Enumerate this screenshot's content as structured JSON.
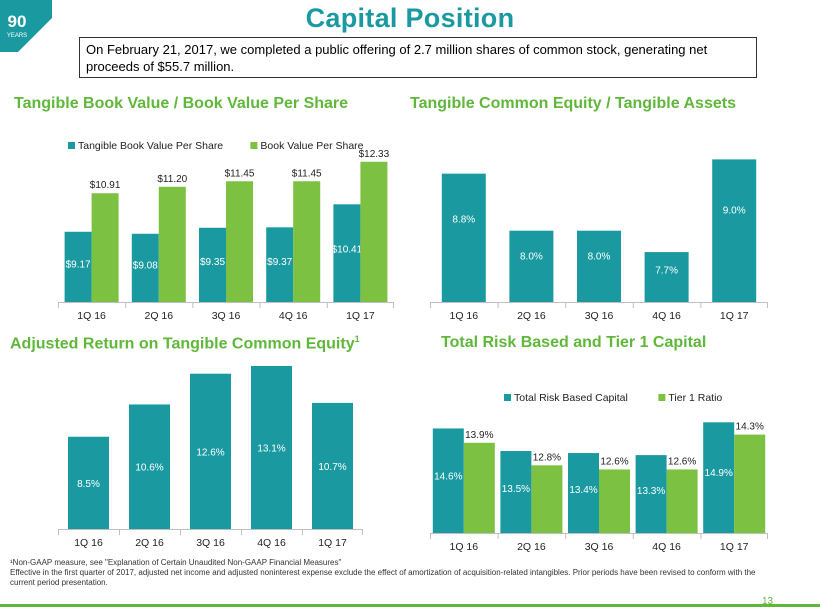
{
  "page": {
    "title": "Capital Position",
    "logo_number": "90",
    "logo_text": "YEARS",
    "callout": "On February 21, 2017, we completed a public offering of 2.7 million shares of common stock, generating net proceeds of $55.7 million.",
    "footnote_line1": "¹Non-GAAP measure, see \"Explanation of Certain Unaudited Non-GAAP Financial Measures\"",
    "footnote_line2": "Effective in the first quarter of 2017, adjusted net income and adjusted noninterest expense exclude the effect of amortization of acquisition-related intangibles. Prior periods have been revised to conform with the current period presentation.",
    "page_number": "13"
  },
  "colors": {
    "teal": "#1a9aa0",
    "green": "#7cc142",
    "title_green": "#5fb83a"
  },
  "chart_data": [
    {
      "type": "bar",
      "title": "Tangible Book Value / Book Value Per Share",
      "categories": [
        "1Q 16",
        "2Q 16",
        "3Q 16",
        "4Q 16",
        "1Q 17"
      ],
      "series": [
        {
          "name": "Tangible Book Value Per Share",
          "values": [
            9.17,
            9.08,
            9.35,
            9.37,
            10.41
          ],
          "labels": [
            "$9.17",
            "$9.08",
            "$9.35",
            "$9.37",
            "$10.41"
          ],
          "color": "#1a9aa0"
        },
        {
          "name": "Book Value Per Share",
          "values": [
            10.91,
            11.2,
            11.45,
            11.45,
            12.33
          ],
          "labels": [
            "$10.91",
            "$11.20",
            "$11.45",
            "$11.45",
            "$12.33"
          ],
          "color": "#7cc142"
        }
      ],
      "ylim": [
        6,
        12.5
      ],
      "legend": "top"
    },
    {
      "type": "bar",
      "title": "Tangible Common Equity / Tangible Assets",
      "categories": [
        "1Q 16",
        "2Q 16",
        "3Q 16",
        "4Q 16",
        "1Q 17"
      ],
      "series": [
        {
          "name": "Tangible Common Equity / Tangible Assets",
          "values": [
            8.8,
            8.0,
            8.0,
            7.7,
            9.0
          ],
          "labels": [
            "8.8%",
            "8.0%",
            "8.0%",
            "7.7%",
            "9.0%"
          ],
          "color": "#1a9aa0"
        }
      ],
      "ylim": [
        7.0,
        9.3
      ],
      "legend": "none"
    },
    {
      "type": "bar",
      "title": "Adjusted Return on Tangible Common Equity",
      "title_sup": "1",
      "categories": [
        "1Q 16",
        "2Q 16",
        "3Q 16",
        "4Q 16",
        "1Q 17"
      ],
      "series": [
        {
          "name": "Adjusted Return on Tangible Common Equity",
          "values": [
            8.5,
            10.6,
            12.6,
            13.1,
            10.7
          ],
          "labels": [
            "8.5%",
            "10.6%",
            "12.6%",
            "13.1%",
            "10.7%"
          ],
          "color": "#1a9aa0"
        }
      ],
      "ylim": [
        2.5,
        13.1
      ],
      "legend": "none"
    },
    {
      "type": "bar",
      "title": "Total Risk Based and Tier 1 Capital",
      "categories": [
        "1Q 16",
        "2Q 16",
        "3Q 16",
        "4Q 16",
        "1Q 17"
      ],
      "series": [
        {
          "name": "Total Risk Based Capital",
          "values": [
            14.6,
            13.5,
            13.4,
            13.3,
            14.9
          ],
          "labels": [
            "14.6%",
            "13.5%",
            "13.4%",
            "13.3%",
            "14.9%"
          ],
          "color": "#1a9aa0"
        },
        {
          "name": "Tier 1 Ratio",
          "values": [
            13.9,
            12.8,
            12.6,
            12.6,
            14.3
          ],
          "labels": [
            "13.9%",
            "12.8%",
            "12.6%",
            "12.6%",
            "14.3%"
          ],
          "color": "#7cc142"
        }
      ],
      "ylim": [
        9.5,
        15.5
      ],
      "legend": "top"
    }
  ]
}
